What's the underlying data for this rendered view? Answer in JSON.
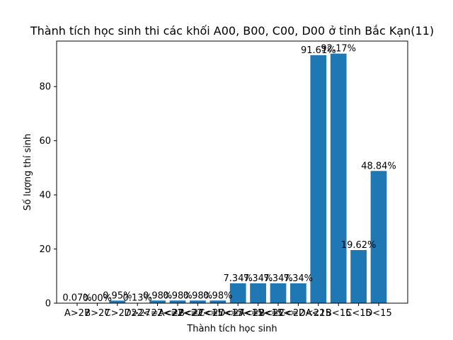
{
  "chart_data": {
    "type": "bar",
    "title": "Thành tích học sinh thi các khối A00, B00, C00, D00 ở tỉnh Bắc Kạn(11)",
    "xlabel": "Thành tích học sinh",
    "ylabel": "Số lượng thí sinh",
    "ylim": [
      0,
      96.8
    ],
    "yticks": [
      "0",
      "20",
      "40",
      "60",
      "80"
    ],
    "grid": false,
    "bar_color": "#1f77b4",
    "categories": [
      "A>27",
      "B>27",
      "C>27",
      "D>27",
      "22<=A<27",
      "22<=B<27",
      "22<=C<27",
      "22<=D<27",
      "15<=A<22",
      "15<=B<22",
      "15<=C<22",
      "15<=D<22",
      "A<15",
      "B<15",
      "C<15",
      "D<15"
    ],
    "values": [
      0.07,
      0.0,
      0.95,
      0.13,
      0.98,
      0.98,
      0.98,
      0.98,
      7.34,
      7.34,
      7.34,
      7.34,
      91.61,
      92.17,
      19.62,
      48.84
    ],
    "labels": [
      "0.07%",
      "0.00%",
      "0.95%",
      "0.13%",
      "0.98%",
      "0.98%",
      "0.98%",
      "0.98%",
      "7.34%",
      "7.34%",
      "7.34%",
      "7.34%",
      "91.61%",
      "92.17%",
      "19.62%",
      "48.84%"
    ]
  }
}
